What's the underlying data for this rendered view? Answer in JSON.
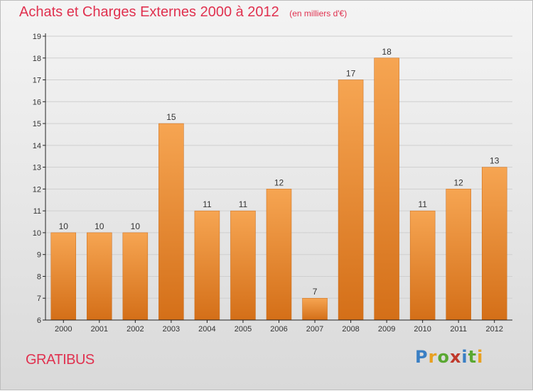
{
  "title": "Achats et Charges Externes 2000 à 2012",
  "subtitle": "(en milliers d'€)",
  "commune": "GRATIBUS",
  "logo": {
    "text": "Proxiti",
    "colors": [
      "#3a7fc4",
      "#e8a020",
      "#5aa832",
      "#c0392b",
      "#3a7fc4",
      "#5aa832",
      "#e8a020"
    ]
  },
  "colors": {
    "bar_top": "#f6a552",
    "bar_bottom": "#d46f18",
    "title": "#e0314f",
    "grid": "#cfcfcf",
    "axis": "#222222"
  },
  "chart_data": {
    "type": "bar",
    "categories": [
      "2000",
      "2001",
      "2002",
      "2003",
      "2004",
      "2005",
      "2006",
      "2007",
      "2008",
      "2009",
      "2010",
      "2011",
      "2012"
    ],
    "values": [
      10,
      10,
      10,
      15,
      11,
      11,
      12,
      7,
      17,
      18,
      11,
      12,
      13
    ],
    "data_labels": [
      "10",
      "10",
      "10",
      "15",
      "11",
      "11",
      "12",
      "7",
      "17",
      "18",
      "11",
      "12",
      "13"
    ],
    "yticks": [
      "6",
      "7",
      "8",
      "9",
      "10",
      "11",
      "12",
      "13",
      "14",
      "15",
      "16",
      "17",
      "18",
      "19"
    ],
    "ylim": [
      6,
      19
    ],
    "grid": true,
    "xlabel": "",
    "ylabel": ""
  }
}
